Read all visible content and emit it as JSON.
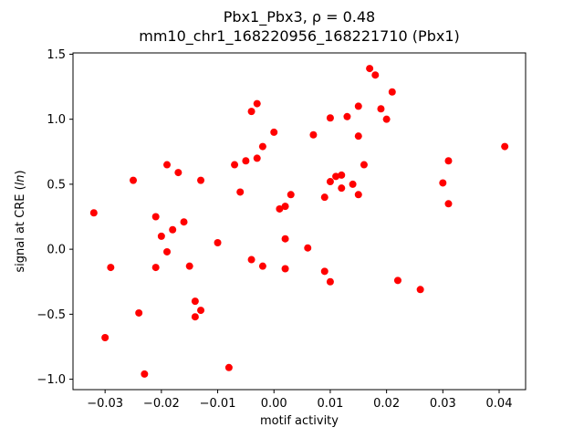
{
  "chart_data": {
    "type": "scatter",
    "title_line1": "Pbx1_Pbx3, ρ = 0.48",
    "title_line2": "mm10_chr1_168220956_168221710 (Pbx1)",
    "xlabel": "motif activity",
    "ylabel_prefix": "signal at CRE (",
    "ylabel_italic": "ln",
    "ylabel_suffix": ")",
    "marker_color": "#ff0000",
    "marker_radius_px": 4,
    "xlim": [
      -0.0357,
      0.0447
    ],
    "ylim": [
      -1.08,
      1.51
    ],
    "xticks": [
      -0.03,
      -0.02,
      -0.01,
      0.0,
      0.01,
      0.02,
      0.03,
      0.04
    ],
    "xtick_labels": [
      "−0.03",
      "−0.02",
      "−0.01",
      "0.00",
      "0.01",
      "0.02",
      "0.03",
      "0.04"
    ],
    "yticks": [
      -1.0,
      -0.5,
      0.0,
      0.5,
      1.0,
      1.5
    ],
    "ytick_labels": [
      "−1.0",
      "−0.5",
      "0.0",
      "0.5",
      "1.0",
      "1.5"
    ],
    "grid": false,
    "legend": "none",
    "points": [
      [
        -0.032,
        0.28
      ],
      [
        -0.03,
        -0.68
      ],
      [
        -0.029,
        -0.14
      ],
      [
        -0.025,
        0.53
      ],
      [
        -0.024,
        -0.49
      ],
      [
        -0.023,
        -0.96
      ],
      [
        -0.021,
        0.25
      ],
      [
        -0.021,
        -0.14
      ],
      [
        -0.02,
        0.1
      ],
      [
        -0.019,
        -0.02
      ],
      [
        -0.019,
        0.65
      ],
      [
        -0.018,
        0.15
      ],
      [
        -0.017,
        0.59
      ],
      [
        -0.016,
        0.21
      ],
      [
        -0.015,
        -0.13
      ],
      [
        -0.014,
        -0.4
      ],
      [
        -0.014,
        -0.52
      ],
      [
        -0.013,
        0.53
      ],
      [
        -0.013,
        -0.47
      ],
      [
        -0.01,
        0.05
      ],
      [
        -0.008,
        -0.91
      ],
      [
        -0.007,
        0.65
      ],
      [
        -0.006,
        0.44
      ],
      [
        -0.005,
        0.68
      ],
      [
        -0.004,
        1.06
      ],
      [
        -0.004,
        -0.08
      ],
      [
        -0.003,
        1.12
      ],
      [
        -0.003,
        0.7
      ],
      [
        -0.002,
        0.79
      ],
      [
        -0.002,
        -0.13
      ],
      [
        0.0,
        0.9
      ],
      [
        0.001,
        0.31
      ],
      [
        0.002,
        0.33
      ],
      [
        0.002,
        -0.15
      ],
      [
        0.002,
        0.08
      ],
      [
        0.003,
        0.42
      ],
      [
        0.006,
        0.01
      ],
      [
        0.007,
        0.88
      ],
      [
        0.009,
        -0.17
      ],
      [
        0.009,
        0.4
      ],
      [
        0.01,
        0.52
      ],
      [
        0.01,
        -0.25
      ],
      [
        0.01,
        1.01
      ],
      [
        0.011,
        0.56
      ],
      [
        0.012,
        0.57
      ],
      [
        0.012,
        0.47
      ],
      [
        0.013,
        1.02
      ],
      [
        0.014,
        0.5
      ],
      [
        0.015,
        0.42
      ],
      [
        0.015,
        0.87
      ],
      [
        0.015,
        1.1
      ],
      [
        0.016,
        0.65
      ],
      [
        0.017,
        1.39
      ],
      [
        0.018,
        1.34
      ],
      [
        0.019,
        1.08
      ],
      [
        0.02,
        1.0
      ],
      [
        0.021,
        1.21
      ],
      [
        0.022,
        -0.24
      ],
      [
        0.026,
        -0.31
      ],
      [
        0.03,
        0.51
      ],
      [
        0.031,
        0.35
      ],
      [
        0.031,
        0.68
      ],
      [
        0.041,
        0.79
      ]
    ]
  }
}
